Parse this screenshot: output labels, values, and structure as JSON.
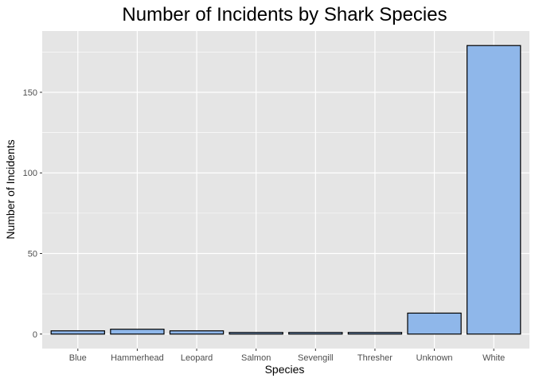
{
  "chart_data": {
    "type": "bar",
    "title": "Number of Incidents by Shark Species",
    "xlabel": "Species",
    "ylabel": "Number of Incidents",
    "categories": [
      "Blue",
      "Hammerhead",
      "Leopard",
      "Salmon",
      "Sevengill",
      "Thresher",
      "Unknown",
      "White"
    ],
    "values": [
      2,
      3,
      2,
      1,
      1,
      1,
      13,
      179
    ],
    "ylim": [
      -9,
      188
    ],
    "yticks": [
      0,
      50,
      100,
      150
    ],
    "grid": true,
    "legend": "none"
  },
  "colors": {
    "panel_background": "#e5e5e5",
    "grid_major": "#ffffff",
    "bar_fill": "#8fb7ea",
    "bar_stroke": "#000000"
  }
}
